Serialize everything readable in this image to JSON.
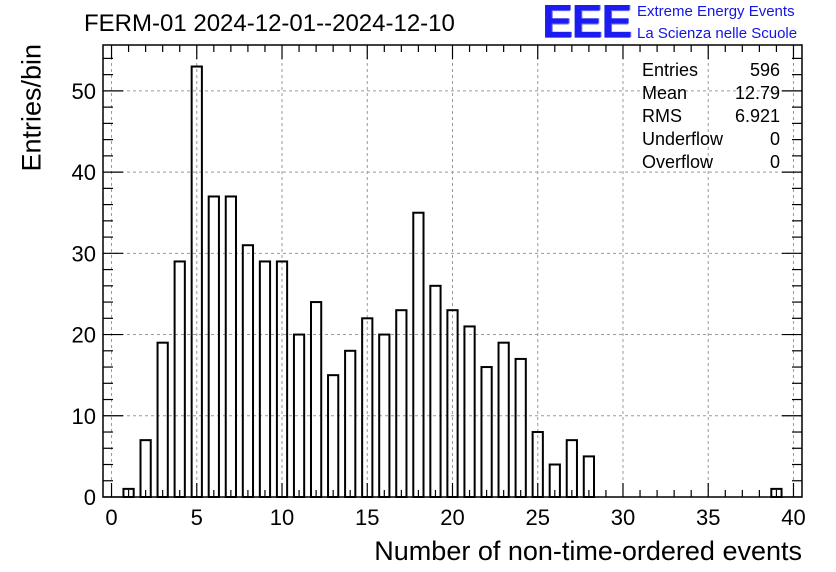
{
  "chart_data": {
    "type": "bar",
    "title": "FERM-01 2024-12-01--2024-12-10",
    "xlabel": "Number of non-time-ordered events",
    "ylabel": "Entries/bin",
    "xlim": [
      -0.5,
      40.5
    ],
    "ylim": [
      0,
      55.65
    ],
    "x_ticks": [
      0,
      5,
      10,
      15,
      20,
      25,
      30,
      35,
      40
    ],
    "y_ticks": [
      0,
      10,
      20,
      30,
      40,
      50
    ],
    "grid": true,
    "bins": [
      {
        "x": 1,
        "value": 1
      },
      {
        "x": 2,
        "value": 7
      },
      {
        "x": 3,
        "value": 19
      },
      {
        "x": 4,
        "value": 29
      },
      {
        "x": 5,
        "value": 53
      },
      {
        "x": 6,
        "value": 37
      },
      {
        "x": 7,
        "value": 37
      },
      {
        "x": 8,
        "value": 31
      },
      {
        "x": 9,
        "value": 29
      },
      {
        "x": 10,
        "value": 29
      },
      {
        "x": 11,
        "value": 20
      },
      {
        "x": 12,
        "value": 24
      },
      {
        "x": 13,
        "value": 15
      },
      {
        "x": 14,
        "value": 18
      },
      {
        "x": 15,
        "value": 22
      },
      {
        "x": 16,
        "value": 20
      },
      {
        "x": 17,
        "value": 23
      },
      {
        "x": 18,
        "value": 35
      },
      {
        "x": 19,
        "value": 26
      },
      {
        "x": 20,
        "value": 23
      },
      {
        "x": 21,
        "value": 21
      },
      {
        "x": 22,
        "value": 16
      },
      {
        "x": 23,
        "value": 19
      },
      {
        "x": 24,
        "value": 17
      },
      {
        "x": 25,
        "value": 8
      },
      {
        "x": 26,
        "value": 4
      },
      {
        "x": 27,
        "value": 7
      },
      {
        "x": 28,
        "value": 5
      },
      {
        "x": 39,
        "value": 1
      }
    ],
    "stats": [
      {
        "label": "Entries",
        "value": "596"
      },
      {
        "label": "Mean",
        "value": "12.79"
      },
      {
        "label": "RMS",
        "value": "6.921"
      },
      {
        "label": "Underflow",
        "value": "0"
      },
      {
        "label": "Overflow",
        "value": "0"
      }
    ]
  },
  "logo": {
    "mark": "EEE",
    "line1": "Extreme Energy Events",
    "line2": "La Scienza nelle Scuole"
  },
  "colors": {
    "logo": "#1414e6",
    "bar_outline": "#000000",
    "grid": "#9a9a9a"
  }
}
